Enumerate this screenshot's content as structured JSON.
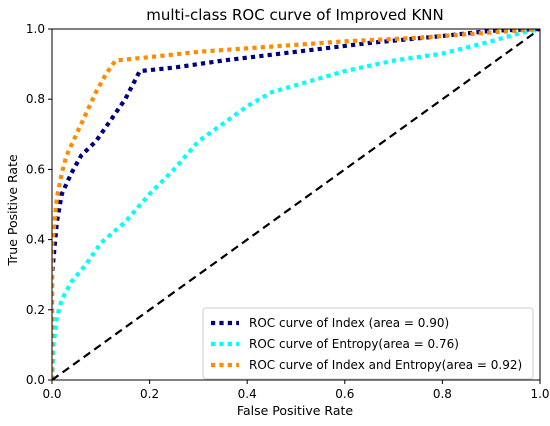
{
  "chart_data": {
    "type": "line",
    "title": "multi-class ROC curve of Improved KNN",
    "xlabel": "False Positive Rate",
    "ylabel": "True Positive Rate",
    "xlim": [
      0.0,
      1.0
    ],
    "ylim": [
      0.0,
      1.0
    ],
    "xticks": [
      "0.0",
      "0.2",
      "0.4",
      "0.6",
      "0.8",
      "1.0"
    ],
    "yticks": [
      "0.0",
      "0.2",
      "0.4",
      "0.6",
      "0.8",
      "1.0"
    ],
    "grid": false,
    "legend_position": "lower-right",
    "series": [
      {
        "name": "ROC curve of Index (area = 0.90)",
        "color": "#000080",
        "style": "dotted",
        "x": [
          0.0,
          0.0,
          0.01,
          0.02,
          0.04,
          0.06,
          0.09,
          0.12,
          0.15,
          0.18,
          0.25,
          0.35,
          0.5,
          0.65,
          0.8,
          0.9,
          1.0
        ],
        "y": [
          0.0,
          0.3,
          0.45,
          0.53,
          0.59,
          0.64,
          0.68,
          0.74,
          0.8,
          0.88,
          0.89,
          0.91,
          0.935,
          0.96,
          0.98,
          0.995,
          1.0
        ]
      },
      {
        "name": "ROC curve of Entropy(area = 0.76)",
        "color": "#00FFFF",
        "style": "dotted",
        "x": [
          0.0,
          0.003,
          0.01,
          0.02,
          0.04,
          0.07,
          0.1,
          0.15,
          0.2,
          0.25,
          0.3,
          0.35,
          0.4,
          0.45,
          0.5,
          0.6,
          0.7,
          0.8,
          0.9,
          0.95,
          1.0
        ],
        "y": [
          0.0,
          0.1,
          0.18,
          0.23,
          0.28,
          0.33,
          0.39,
          0.45,
          0.53,
          0.6,
          0.68,
          0.73,
          0.78,
          0.82,
          0.84,
          0.88,
          0.91,
          0.93,
          0.965,
          0.985,
          1.0
        ]
      },
      {
        "name": "ROC curve of Index and Entropy(area = 0.92)",
        "color": "#FF8C00",
        "style": "dotted",
        "x": [
          0.0,
          0.0,
          0.01,
          0.02,
          0.03,
          0.05,
          0.07,
          0.09,
          0.11,
          0.13,
          0.2,
          0.3,
          0.45,
          0.6,
          0.75,
          0.9,
          1.0
        ],
        "y": [
          0.0,
          0.38,
          0.52,
          0.59,
          0.64,
          0.7,
          0.76,
          0.82,
          0.87,
          0.91,
          0.92,
          0.935,
          0.95,
          0.965,
          0.975,
          0.99,
          1.0
        ]
      },
      {
        "name": "",
        "color": "#000000",
        "style": "dashed",
        "x": [
          0.0,
          1.0
        ],
        "y": [
          0.0,
          1.0
        ]
      }
    ]
  }
}
